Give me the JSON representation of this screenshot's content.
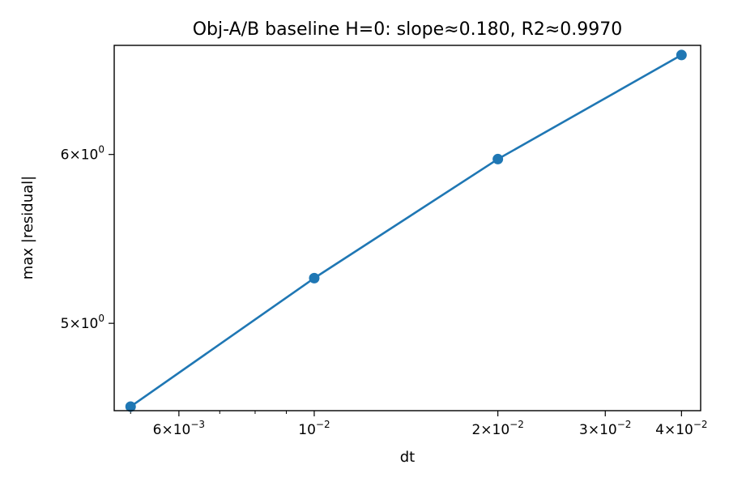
{
  "chart_data": {
    "type": "line",
    "title": "Obj-A/B baseline H=0: slope≈0.180, R2≈0.9970",
    "xlabel": "dt",
    "ylabel": "max |residual|",
    "xscale": "log",
    "yscale": "log",
    "xlim": [
      0.0047,
      0.043
    ],
    "ylim": [
      4.55,
      6.75
    ],
    "grid": false,
    "series": [
      {
        "x": [
          0.005,
          0.01,
          0.02,
          0.04
        ],
        "y": [
          4.57,
          5.25,
          5.97,
          6.68
        ],
        "color": "#1f77b4",
        "marker": "circle"
      }
    ],
    "x_ticks": [
      {
        "value": 0.006,
        "mantissa": "6",
        "exp": "−3"
      },
      {
        "value": 0.01,
        "mantissa": "",
        "exp": "−2"
      },
      {
        "value": 0.02,
        "mantissa": "2",
        "exp": "−2"
      },
      {
        "value": 0.03,
        "mantissa": "3",
        "exp": "−2"
      },
      {
        "value": 0.04,
        "mantissa": "4",
        "exp": "−2"
      }
    ],
    "x_minor_ticks": [
      0.005,
      0.007,
      0.008,
      0.009
    ],
    "y_ticks": [
      {
        "value": 5,
        "mantissa": "5",
        "exp": "0"
      },
      {
        "value": 6,
        "mantissa": "6",
        "exp": "0"
      }
    ]
  }
}
